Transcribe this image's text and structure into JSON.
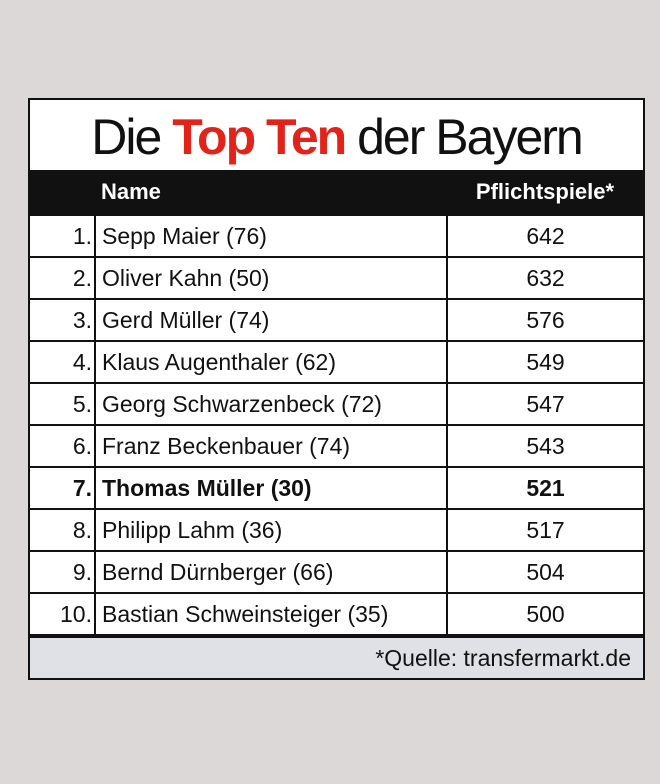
{
  "title": [
    "Die",
    "Top Ten",
    "der Bayern"
  ],
  "header": {
    "rank": null,
    "name": "Name",
    "games": "Pflichtspiele*"
  },
  "rows": [
    {
      "rank": "1.",
      "name": "Sepp Maier (76)",
      "games": 642
    },
    {
      "rank": "2.",
      "name": "Oliver Kahn (50)",
      "games": 632
    },
    {
      "rank": "3.",
      "name": "Gerd Müller (74)",
      "games": 576
    },
    {
      "rank": "4.",
      "name": "Klaus Augenthaler (62)",
      "games": 549
    },
    {
      "rank": "5.",
      "name": "Georg Schwarzenbeck (72)",
      "games": 547
    },
    {
      "rank": "6.",
      "name": "Franz Beckenbauer (74)",
      "games": 543
    },
    {
      "rank": "7.",
      "name": "Thomas Müller (30)",
      "games": 521,
      "bold": true
    },
    {
      "rank": "8.",
      "name": "Philipp Lahm (36)",
      "games": 517
    },
    {
      "rank": "9.",
      "name": "Bernd Dürnberger (66)",
      "games": 504
    },
    {
      "rank": "10.",
      "name": "Bastian Schweinsteiger (35)",
      "games": 500
    }
  ],
  "footer": "*Quelle: transfermarkt.de"
}
